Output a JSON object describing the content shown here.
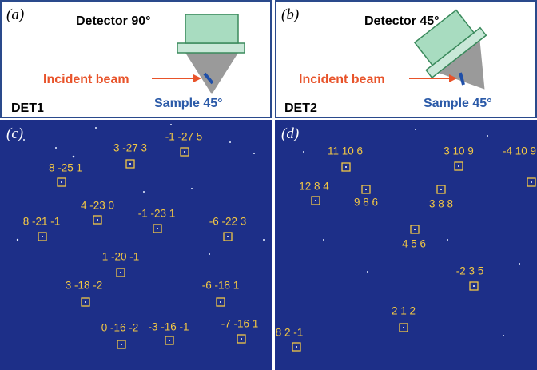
{
  "panels": [
    {
      "label": "(a)",
      "detector": "Detector 90°",
      "beam": "Incident beam",
      "det": "DET1",
      "sample": "Sample 45°"
    },
    {
      "label": "(b)",
      "detector": "Detector 45°",
      "beam": "Incident beam",
      "det": "DET2",
      "sample": "Sample 45°"
    }
  ],
  "patterns": [
    {
      "label": "(c)",
      "reflections": [
        "-1 -27 5",
        "3 -27 3",
        "8 -25 1",
        "4 -23 0",
        "-1 -23 1",
        "-6 -22 3",
        "8 -21 -1",
        "1 -20 -1",
        "3 -18 -2",
        "-6 -18 1",
        "0 -16 -2",
        "-3 -16 -1",
        "-7 -16 1"
      ]
    },
    {
      "label": "(d)",
      "reflections": [
        "11 10 6",
        "3 10 9",
        "-4 10 9",
        "12 8 4",
        "9 8 6",
        "3 8 8",
        "4 5 6",
        "-2 3 5",
        "2 1 2",
        "8 2 -1"
      ]
    }
  ]
}
